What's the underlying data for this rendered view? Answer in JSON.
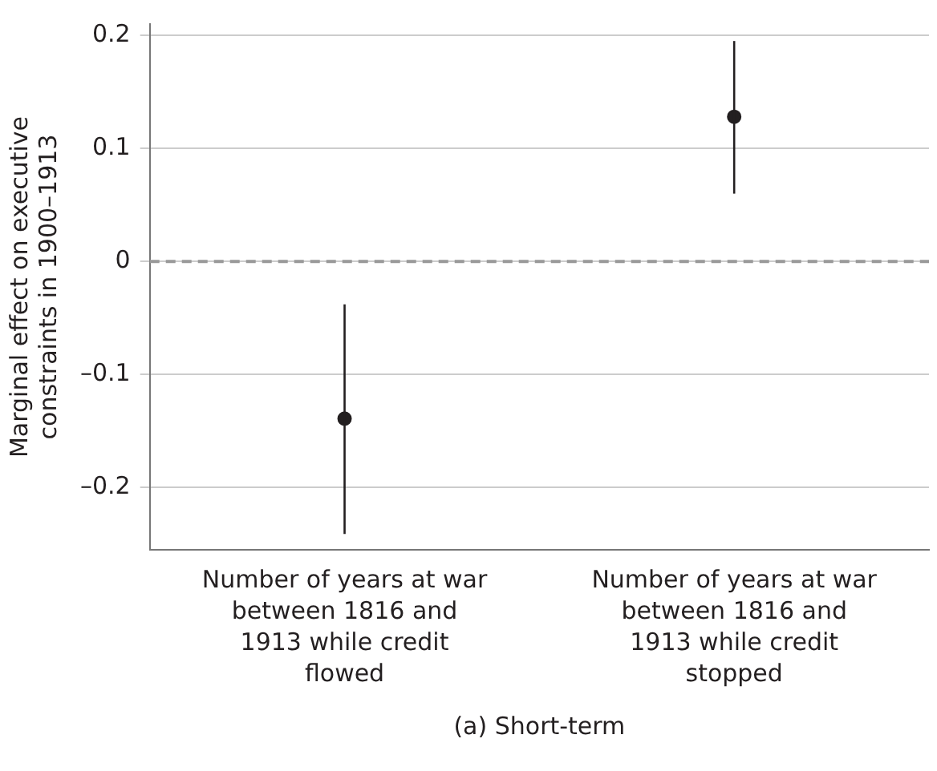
{
  "chart_data": {
    "type": "scatter",
    "ylabel": "Marginal effect on executive constraints in 1900–1913",
    "categories": [
      "Number of years at war between 1816 and 1913 while credit flowed",
      "Number of years at war between 1816 and 1913 while credit stopped"
    ],
    "series": [
      {
        "color": "#231f20",
        "values": [
          -0.139,
          0.128
        ],
        "errors": [
          [
            -0.241,
            -0.038
          ],
          [
            0.06,
            0.195
          ]
        ]
      }
    ],
    "ylim": [
      -0.255,
      0.21
    ],
    "yticks": [
      {
        "value": -0.2,
        "label": "–0.2"
      },
      {
        "value": -0.1,
        "label": "–0.1"
      },
      0,
      0.1,
      0.2
    ],
    "ref_lines": [
      {
        "axis": "y",
        "value": 0,
        "color": "#999999",
        "line_style": "dashed"
      }
    ],
    "grid": "y",
    "marker": "circle",
    "legend": false,
    "annotations": [
      "(a) Short-term"
    ]
  }
}
